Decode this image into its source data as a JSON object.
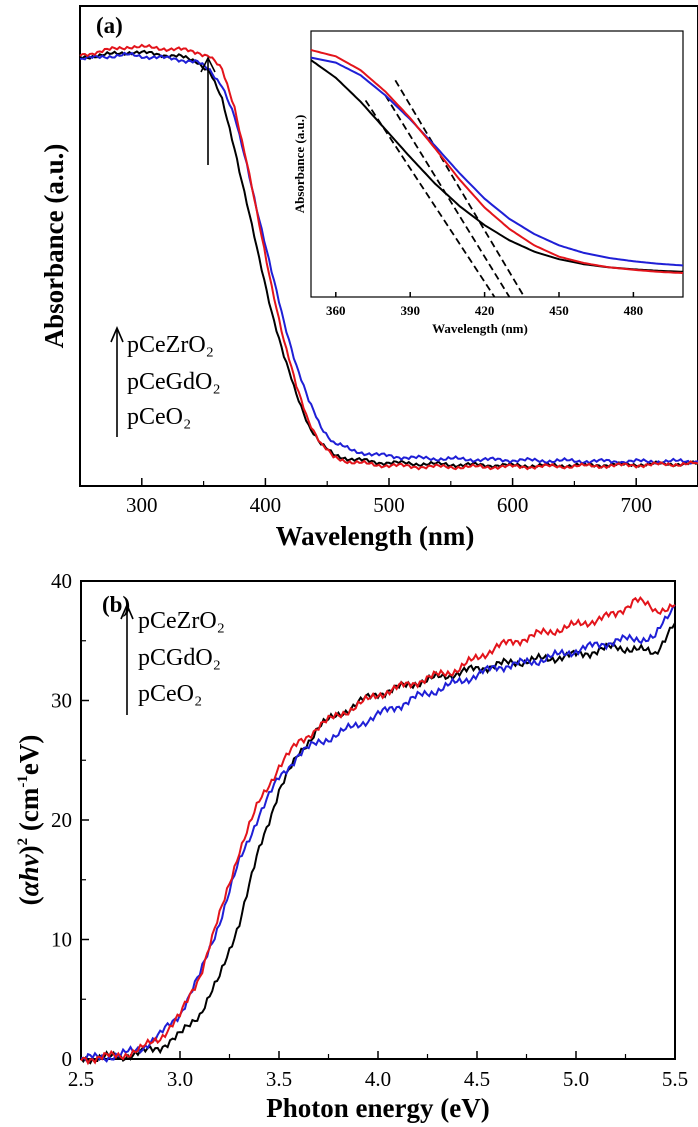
{
  "colors": {
    "pCeO2": "#000000",
    "pCeGdO2": "#1f1fd6",
    "pCeZrO2": "#e3141b",
    "tangent": "#000000",
    "frame": "#000000"
  },
  "panel_a": {
    "label": "(a)",
    "legend": {
      "arrow": "arrow-up-icon",
      "items": [
        {
          "text": "pCeZrO₂",
          "series": "pCeZrO2"
        },
        {
          "text": "pCeGdO₂",
          "series": "pCeGdO2"
        },
        {
          "text": "pCeO₂",
          "series": "pCeO2"
        }
      ]
    },
    "inset": {
      "xlabel": "Wavelength (nm)",
      "ylabel": "Absorbance (a.u.)",
      "tangent_intercepts": [
        424,
        430,
        436
      ]
    }
  },
  "panel_b": {
    "label": "(b)",
    "ylabel_parts": {
      "open": "(",
      "alpha": "α",
      "h": "h",
      "nu": "ν",
      "close": ")",
      "sq": "2",
      "unit_open": " (cm",
      "unit_sup": "-1",
      "unit_close": "eV)"
    },
    "legend": {
      "arrow": "arrow-up-icon",
      "items": [
        {
          "text": "pCeZrO₂",
          "series": "pCeZrO2"
        },
        {
          "text": "pCGdO₂",
          "series": "pCeGdO2"
        },
        {
          "text": "pCeO₂",
          "series": "pCeO2"
        }
      ]
    }
  },
  "chart_data": [
    {
      "type": "line",
      "title": "(a)",
      "xlabel": "Wavelength (nm)",
      "ylabel": "Absorbance (a.u.)",
      "xlim": [
        250,
        750
      ],
      "ylim": [
        0,
        1
      ],
      "xticks": [
        300,
        400,
        500,
        600,
        700
      ],
      "yticks": [],
      "grid": false,
      "legend_position": "left-middle",
      "series": [
        {
          "name": "pCeO2",
          "color": "#000000",
          "x": [
            250,
            270,
            290,
            310,
            330,
            345,
            355,
            365,
            375,
            385,
            395,
            405,
            415,
            425,
            435,
            445,
            455,
            470,
            490,
            520,
            560,
            620,
            680,
            750
          ],
          "y": [
            0.96,
            0.965,
            0.972,
            0.968,
            0.962,
            0.95,
            0.925,
            0.86,
            0.75,
            0.62,
            0.49,
            0.37,
            0.265,
            0.175,
            0.105,
            0.06,
            0.035,
            0.025,
            0.018,
            0.015,
            0.012,
            0.01,
            0.012,
            0.015
          ]
        },
        {
          "name": "pCeGdO2",
          "color": "#1f1fd6",
          "x": [
            250,
            270,
            290,
            310,
            330,
            345,
            355,
            365,
            375,
            385,
            395,
            405,
            415,
            425,
            435,
            445,
            455,
            470,
            490,
            520,
            560,
            620,
            680,
            750
          ],
          "y": [
            0.955,
            0.962,
            0.965,
            0.96,
            0.955,
            0.948,
            0.93,
            0.895,
            0.82,
            0.71,
            0.585,
            0.46,
            0.345,
            0.245,
            0.16,
            0.1,
            0.065,
            0.045,
            0.035,
            0.028,
            0.025,
            0.022,
            0.02,
            0.02
          ]
        },
        {
          "name": "pCeZrO2",
          "color": "#e3141b",
          "x": [
            250,
            270,
            290,
            310,
            330,
            345,
            355,
            365,
            375,
            385,
            395,
            405,
            415,
            425,
            435,
            445,
            455,
            470,
            490,
            520,
            560,
            620,
            680,
            750
          ],
          "y": [
            0.965,
            0.975,
            0.985,
            0.982,
            0.978,
            0.972,
            0.962,
            0.93,
            0.845,
            0.715,
            0.57,
            0.43,
            0.3,
            0.195,
            0.115,
            0.06,
            0.03,
            0.018,
            0.012,
            0.008,
            0.007,
            0.008,
            0.01,
            0.015
          ]
        }
      ]
    },
    {
      "type": "line",
      "title": "",
      "xlabel": "Wavelength (nm)",
      "ylabel": "Absorbance (a.u.)",
      "xlim": [
        350,
        500
      ],
      "ylim": [
        0,
        1
      ],
      "xticks": [
        360,
        390,
        420,
        450,
        480
      ],
      "grid": false,
      "series": [
        {
          "name": "pCeO2",
          "color": "#000000",
          "x": [
            350,
            360,
            370,
            380,
            390,
            400,
            410,
            420,
            430,
            440,
            450,
            460,
            470,
            480,
            490,
            500
          ],
          "y": [
            0.94,
            0.87,
            0.775,
            0.665,
            0.555,
            0.45,
            0.36,
            0.285,
            0.225,
            0.18,
            0.15,
            0.13,
            0.118,
            0.11,
            0.104,
            0.1
          ]
        },
        {
          "name": "pCeGdO2",
          "color": "#1f1fd6",
          "x": [
            350,
            360,
            370,
            380,
            390,
            400,
            410,
            420,
            430,
            440,
            450,
            460,
            470,
            480,
            490,
            500
          ],
          "y": [
            0.95,
            0.93,
            0.88,
            0.8,
            0.705,
            0.6,
            0.49,
            0.39,
            0.31,
            0.25,
            0.205,
            0.175,
            0.155,
            0.142,
            0.132,
            0.125
          ]
        },
        {
          "name": "pCeZrO2",
          "color": "#e3141b",
          "x": [
            350,
            360,
            370,
            380,
            390,
            400,
            410,
            420,
            430,
            440,
            450,
            460,
            470,
            480,
            490,
            500
          ],
          "y": [
            0.98,
            0.955,
            0.9,
            0.815,
            0.71,
            0.59,
            0.465,
            0.355,
            0.27,
            0.205,
            0.16,
            0.135,
            0.118,
            0.108,
            0.1,
            0.095
          ]
        }
      ]
    },
    {
      "type": "line",
      "title": "(b)",
      "xlabel": "Photon energy (eV)",
      "ylabel": "(αhν)² (cm⁻¹eV)",
      "xlim": [
        2.5,
        5.5
      ],
      "ylim": [
        0,
        40
      ],
      "xticks": [
        2.5,
        3.0,
        3.5,
        4.0,
        4.5,
        5.0,
        5.5
      ],
      "yticks": [
        0,
        10,
        20,
        30,
        40
      ],
      "grid": false,
      "legend_position": "left-upper",
      "series": [
        {
          "name": "pCeO2",
          "color": "#000000",
          "x": [
            2.5,
            2.7,
            2.8,
            2.9,
            3.0,
            3.1,
            3.2,
            3.3,
            3.4,
            3.5,
            3.6,
            3.7,
            3.8,
            3.9,
            4.0,
            4.2,
            4.4,
            4.6,
            4.8,
            5.0,
            5.2,
            5.4,
            5.5
          ],
          "y": [
            0,
            0.2,
            0.5,
            1.0,
            2.0,
            3.8,
            6.8,
            11.5,
            17.5,
            22.5,
            25.5,
            27.8,
            28.8,
            29.8,
            30.6,
            31.5,
            32.3,
            33.0,
            33.4,
            33.8,
            34.5,
            34.0,
            36.5
          ]
        },
        {
          "name": "pCeGdO2",
          "color": "#1f1fd6",
          "x": [
            2.5,
            2.7,
            2.8,
            2.9,
            3.0,
            3.1,
            3.2,
            3.3,
            3.4,
            3.5,
            3.6,
            3.7,
            3.8,
            3.9,
            4.0,
            4.2,
            4.4,
            4.6,
            4.8,
            5.0,
            5.2,
            5.4,
            5.5
          ],
          "y": [
            0,
            0.3,
            0.9,
            2.0,
            3.8,
            7.0,
            11.5,
            16.5,
            20.5,
            23.5,
            25.5,
            26.5,
            27.2,
            28.0,
            28.8,
            30.3,
            31.5,
            32.8,
            33.3,
            34.2,
            35.0,
            35.3,
            38.0
          ]
        },
        {
          "name": "pCeZrO2",
          "color": "#e3141b",
          "x": [
            2.5,
            2.7,
            2.8,
            2.9,
            3.0,
            3.1,
            3.2,
            3.3,
            3.4,
            3.5,
            3.6,
            3.7,
            3.8,
            3.9,
            4.0,
            4.2,
            4.4,
            4.6,
            4.8,
            5.0,
            5.2,
            5.3,
            5.4,
            5.5
          ],
          "y": [
            0,
            0.3,
            0.8,
            1.8,
            3.6,
            7.0,
            12.0,
            17.5,
            21.5,
            24.5,
            26.5,
            27.8,
            28.8,
            29.6,
            30.5,
            31.6,
            32.6,
            34.5,
            35.5,
            36.3,
            37.2,
            38.5,
            37.5,
            38.0
          ]
        }
      ]
    }
  ]
}
